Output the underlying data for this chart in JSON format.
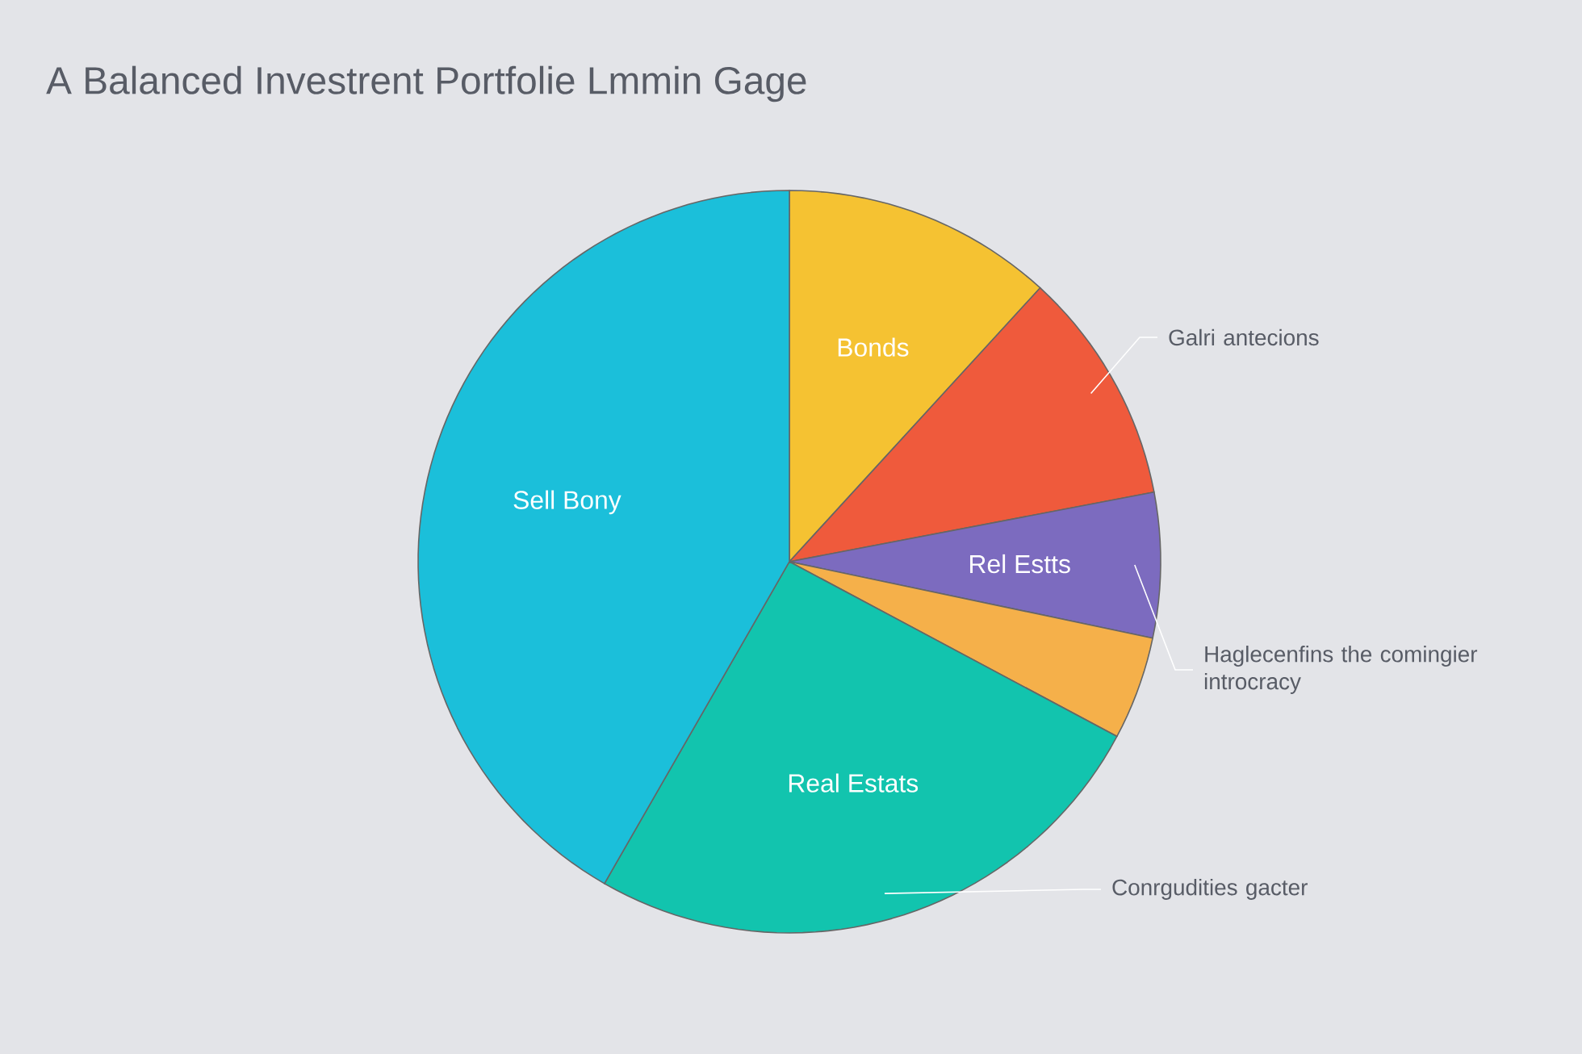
{
  "chart_data": {
    "type": "pie",
    "title": "A Balanced Investrent Portfolie Lmmin Gage",
    "categories": [
      "Bonds",
      null,
      "Rel Estts",
      null,
      "Real Estats",
      "Sell Bony"
    ],
    "values": [
      11.8,
      10.2,
      6.3,
      4.5,
      25.5,
      41.7
    ],
    "colors": [
      "#f5c232",
      "#ef5a3c",
      "#7c6bbf",
      "#f5b04a",
      "#12c4ae",
      "#1bbfda"
    ],
    "annotations": [
      "Galri antecions",
      "Haglecenfins the comingier introcracy",
      "Conrgudities gacter"
    ]
  }
}
